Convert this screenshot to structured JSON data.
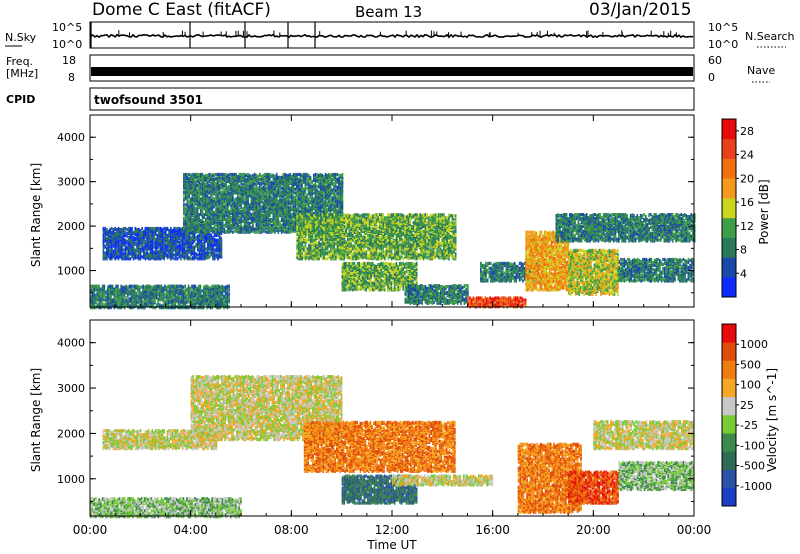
{
  "header": {
    "station": "Dome C East (fitACF)",
    "beam": "Beam 13",
    "date": "03/Jan/2015"
  },
  "panels": {
    "nsky": {
      "label": "N.Sky",
      "right_label": "N.Search",
      "left_ticks": [
        "10^5",
        "10^0"
      ],
      "right_ticks": [
        "10^5",
        "10^0"
      ]
    },
    "freq": {
      "label_1": "Freq.",
      "label_2": "[MHz]",
      "left_ticks": [
        "18",
        "8"
      ],
      "right_label": "Nave",
      "right_ticks": [
        "60",
        "0"
      ]
    },
    "cpid": {
      "label": "CPID",
      "program": "twofsound 3501"
    }
  },
  "colors": {
    "power_scale": [
      "#0b2bff",
      "#1a4aa8",
      "#2a7a5a",
      "#3e9e48",
      "#ccd51e",
      "#f29a1c",
      "#f2700e",
      "#e8401a",
      "#e80a0a"
    ],
    "velocity_scale": [
      "#1d3fc7",
      "#2a52a8",
      "#2e6a55",
      "#3c8a4e",
      "#77cc33",
      "#c8c8c8",
      "#f5a623",
      "#f07b0e",
      "#e04a0a",
      "#e80a0a"
    ]
  },
  "chart_data": [
    {
      "type": "heatmap",
      "name": "power",
      "ylabel": "Slant Range [km]",
      "xlabel": "Time UT",
      "x_ticks": [
        "00:00",
        "04:00",
        "08:00",
        "12:00",
        "16:00",
        "20:00",
        "00:00"
      ],
      "y_ticks": [
        "1000",
        "2000",
        "3000",
        "4000"
      ],
      "ylim": [
        180,
        4500
      ],
      "xlim_hours": [
        0,
        24
      ],
      "colorbar": {
        "label": "Power [dB]",
        "ticks": [
          "4",
          "8",
          "12",
          "16",
          "20",
          "24",
          "28"
        ],
        "range": [
          0,
          30
        ]
      },
      "regions": [
        {
          "t0": 0.0,
          "t1": 5.5,
          "r0": 200,
          "r1": 700,
          "level": 2
        },
        {
          "t0": 0.5,
          "t1": 5.2,
          "r0": 1300,
          "r1": 2000,
          "level": 1
        },
        {
          "t0": 3.7,
          "t1": 10.0,
          "r0": 1900,
          "r1": 3200,
          "level": 2
        },
        {
          "t0": 8.2,
          "t1": 14.5,
          "r0": 1300,
          "r1": 2300,
          "level": 3
        },
        {
          "t0": 10.0,
          "t1": 13.0,
          "r0": 600,
          "r1": 1200,
          "level": 3
        },
        {
          "t0": 12.5,
          "t1": 15.0,
          "r0": 300,
          "r1": 700,
          "level": 2
        },
        {
          "t0": 15.0,
          "t1": 17.3,
          "r0": 220,
          "r1": 420,
          "level": 7
        },
        {
          "t0": 15.5,
          "t1": 18.0,
          "r0": 800,
          "r1": 1200,
          "level": 2
        },
        {
          "t0": 17.3,
          "t1": 19.0,
          "r0": 600,
          "r1": 1900,
          "level": 5
        },
        {
          "t0": 19.0,
          "t1": 21.0,
          "r0": 500,
          "r1": 1500,
          "level": 4
        },
        {
          "t0": 18.5,
          "t1": 24.0,
          "r0": 1700,
          "r1": 2300,
          "level": 2
        },
        {
          "t0": 21.0,
          "t1": 24.0,
          "r0": 800,
          "r1": 1300,
          "level": 2
        }
      ]
    },
    {
      "type": "heatmap",
      "name": "velocity",
      "ylabel": "Slant Range [km]",
      "xlabel": "Time UT",
      "x_ticks": [
        "00:00",
        "04:00",
        "08:00",
        "12:00",
        "16:00",
        "20:00",
        "00:00"
      ],
      "y_ticks": [
        "1000",
        "2000",
        "3000",
        "4000"
      ],
      "ylim": [
        180,
        4500
      ],
      "xlim_hours": [
        0,
        24
      ],
      "colorbar": {
        "label": "Velocity [m s^-1]",
        "ticks": [
          "1000",
          "500",
          "100",
          "25",
          "-25",
          "-100",
          "-500",
          "-1000"
        ],
        "range": [
          -1000,
          1000
        ]
      },
      "regions": [
        {
          "t0": 0.0,
          "t1": 6.0,
          "r0": 200,
          "r1": 600,
          "level": 4
        },
        {
          "t0": 0.5,
          "t1": 5.0,
          "r0": 1700,
          "r1": 2100,
          "level": 5
        },
        {
          "t0": 4.0,
          "t1": 10.0,
          "r0": 1900,
          "r1": 3300,
          "level": 5
        },
        {
          "t0": 8.5,
          "t1": 14.5,
          "r0": 1200,
          "r1": 2300,
          "level": 7
        },
        {
          "t0": 10.0,
          "t1": 13.0,
          "r0": 500,
          "r1": 1100,
          "level": 2
        },
        {
          "t0": 12.0,
          "t1": 16.0,
          "r0": 900,
          "r1": 1100,
          "level": 5
        },
        {
          "t0": 17.0,
          "t1": 19.5,
          "r0": 300,
          "r1": 1800,
          "level": 7
        },
        {
          "t0": 19.0,
          "t1": 21.0,
          "r0": 500,
          "r1": 1200,
          "level": 8
        },
        {
          "t0": 20.0,
          "t1": 24.0,
          "r0": 1700,
          "r1": 2300,
          "level": 5
        },
        {
          "t0": 21.0,
          "t1": 24.0,
          "r0": 800,
          "r1": 1400,
          "level": 4
        }
      ]
    }
  ]
}
